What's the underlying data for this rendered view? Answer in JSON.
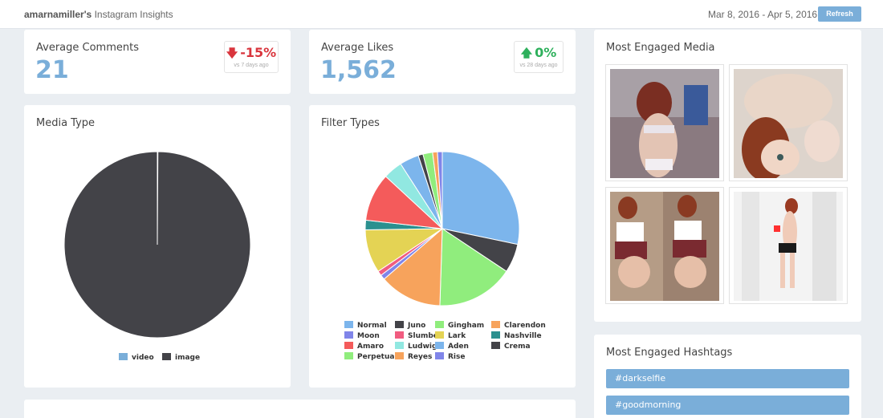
{
  "header": {
    "username": "amarnamiller's",
    "title_suffix": "Instagram Insights",
    "date_range": "Mar 8, 2016 - Apr 5, 2016",
    "refresh_label": "Refresh"
  },
  "avg_comments": {
    "title": "Average Comments",
    "value": "21",
    "delta": "-15%",
    "delta_note": "vs 7 days ago",
    "delta_direction": "down",
    "delta_color": "#d9353d"
  },
  "avg_likes": {
    "title": "Average Likes",
    "value": "1,562",
    "delta": "0%",
    "delta_note": "vs 28 days ago",
    "delta_direction": "up",
    "delta_color": "#2eb05c"
  },
  "accent_color": "#7aaed9",
  "media_type": {
    "title": "Media Type",
    "legend": [
      {
        "label": "video",
        "color": "#7aaed9"
      },
      {
        "label": "image",
        "color": "#434348"
      }
    ]
  },
  "filter_types": {
    "title": "Filter Types"
  },
  "chart_data": [
    {
      "type": "pie",
      "title": "Media Type",
      "categories": [
        "video",
        "image"
      ],
      "values": [
        0.1,
        99.9
      ],
      "colors": [
        "#7aaed9",
        "#434348"
      ],
      "legend_position": "bottom"
    },
    {
      "type": "pie",
      "title": "Filter Types",
      "categories": [
        "Normal",
        "Juno",
        "Gingham",
        "Clarendon",
        "Moon",
        "Slumber",
        "Lark",
        "Nashville",
        "Amaro",
        "Ludwig",
        "Aden",
        "Crema",
        "Perpetua",
        "Reyes",
        "Rise"
      ],
      "values": [
        28,
        6,
        16,
        13,
        1,
        1,
        9,
        2,
        10,
        4,
        4,
        1,
        2,
        1,
        1
      ],
      "colors": [
        "#7cb5ec",
        "#434348",
        "#90ed7d",
        "#f7a35c",
        "#8085e9",
        "#f15c80",
        "#e4d354",
        "#2b908f",
        "#f45b5b",
        "#91e8e1",
        "#7cb5ec",
        "#434348",
        "#90ed7d",
        "#f7a35c",
        "#8085e9"
      ],
      "legend_position": "bottom"
    }
  ],
  "engaged_media": {
    "title": "Most Engaged Media",
    "items": [
      {
        "icon": "photo-thumbnail"
      },
      {
        "icon": "photo-thumbnail"
      },
      {
        "icon": "photo-thumbnail"
      },
      {
        "icon": "photo-thumbnail"
      }
    ]
  },
  "engaged_hashtags": {
    "title": "Most Engaged Hashtags",
    "tags": [
      "#darkselfie",
      "#goodmorning"
    ]
  }
}
